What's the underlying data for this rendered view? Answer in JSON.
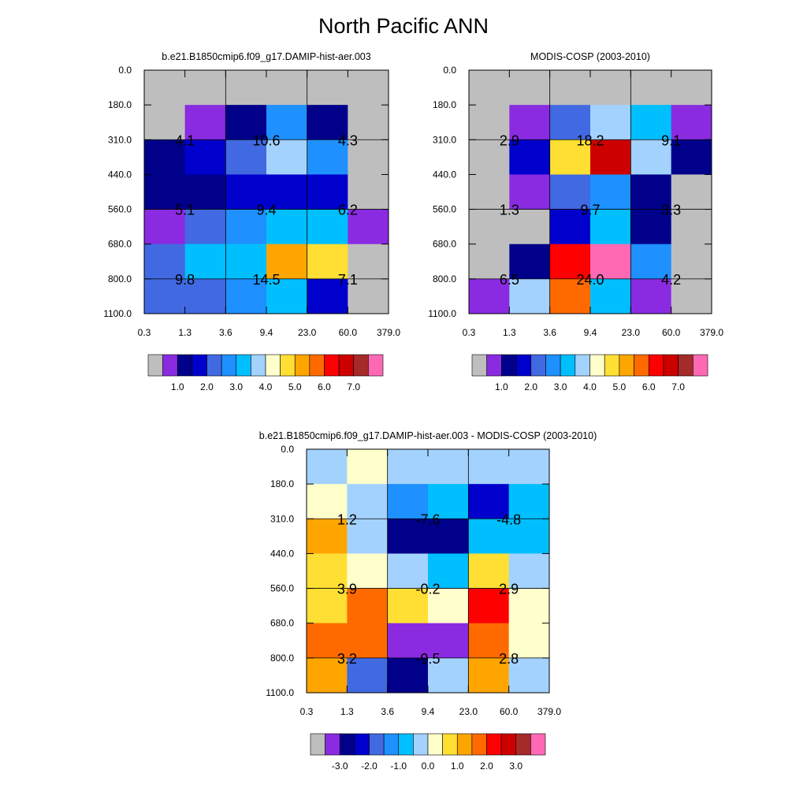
{
  "title": "North Pacific ANN",
  "chart_data": [
    {
      "type": "heatmap",
      "title": "b.e21.B1850cmip6.f09_g17.DAMIP-hist-aer.003",
      "x_ticks": [
        "0.3",
        "1.3",
        "3.6",
        "9.4",
        "23.0",
        "60.0",
        "379.0"
      ],
      "y_ticks": [
        "0.0",
        "180.0",
        "310.0",
        "440.0",
        "560.0",
        "680.0",
        "800.0",
        "1100.0"
      ],
      "cell_colors": [
        [
          "#bebebe",
          "#bebebe",
          "#bebebe",
          "#bebebe",
          "#bebebe",
          "#bebebe"
        ],
        [
          "#bebebe",
          "#8a2be2",
          "#00008b",
          "#1e90ff",
          "#00008b",
          "#bebebe"
        ],
        [
          "#00008b",
          "#0000cd",
          "#4169e1",
          "#a3d2ff",
          "#1e90ff",
          "#bebebe"
        ],
        [
          "#00008b",
          "#00008b",
          "#0000cd",
          "#0000cd",
          "#0000cd",
          "#bebebe"
        ],
        [
          "#8a2be2",
          "#4169e1",
          "#1e90ff",
          "#00bfff",
          "#00bfff",
          "#8a2be2"
        ],
        [
          "#4169e1",
          "#00bfff",
          "#00bfff",
          "#ffa500",
          "#ffdf33",
          "#bebebe"
        ],
        [
          "#4169e1",
          "#4169e1",
          "#1e90ff",
          "#00bfff",
          "#0000cd",
          "#bebebe"
        ]
      ],
      "annotations": [
        {
          "row": 1,
          "col": 0,
          "text": "4.1"
        },
        {
          "row": 1,
          "col": 1,
          "text": "10.6"
        },
        {
          "row": 1,
          "col": 2,
          "text": "4.3"
        },
        {
          "row": 2,
          "col": 0,
          "text": "5.1"
        },
        {
          "row": 2,
          "col": 1,
          "text": "9.4"
        },
        {
          "row": 2,
          "col": 2,
          "text": "6.2"
        },
        {
          "row": 3,
          "col": 0,
          "text": "9.8"
        },
        {
          "row": 3,
          "col": 1,
          "text": "14.5"
        },
        {
          "row": 3,
          "col": 2,
          "text": "7.1"
        }
      ],
      "colorbar": {
        "colors": [
          "#bebebe",
          "#8a2be2",
          "#00008b",
          "#0000cd",
          "#4169e1",
          "#1e90ff",
          "#00bfff",
          "#a3d2ff",
          "#ffffcc",
          "#ffdf33",
          "#ffa500",
          "#ff6a00",
          "#ff0000",
          "#cd0000",
          "#a52a2a",
          "#ff69b4"
        ],
        "labels": [
          {
            "text": "1.0",
            "boundary": 2
          },
          {
            "text": "2.0",
            "boundary": 4
          },
          {
            "text": "3.0",
            "boundary": 6
          },
          {
            "text": "4.0",
            "boundary": 8
          },
          {
            "text": "5.0",
            "boundary": 10
          },
          {
            "text": "6.0",
            "boundary": 12
          },
          {
            "text": "7.0",
            "boundary": 14
          }
        ]
      }
    },
    {
      "type": "heatmap",
      "title": "MODIS-COSP (2003-2010)",
      "x_ticks": [
        "0.3",
        "1.3",
        "3.6",
        "9.4",
        "23.0",
        "60.0",
        "379.0"
      ],
      "y_ticks": [
        "0.0",
        "180.0",
        "310.0",
        "440.0",
        "560.0",
        "680.0",
        "800.0",
        "1100.0"
      ],
      "cell_colors": [
        [
          "#bebebe",
          "#bebebe",
          "#bebebe",
          "#bebebe",
          "#bebebe",
          "#bebebe"
        ],
        [
          "#bebebe",
          "#8a2be2",
          "#4169e1",
          "#a3d2ff",
          "#00bfff",
          "#8a2be2"
        ],
        [
          "#bebebe",
          "#0000cd",
          "#ffdf33",
          "#cd0000",
          "#a3d2ff",
          "#00008b"
        ],
        [
          "#bebebe",
          "#8a2be2",
          "#4169e1",
          "#1e90ff",
          "#00008b",
          "#bebebe"
        ],
        [
          "#bebebe",
          "#bebebe",
          "#0000cd",
          "#00bfff",
          "#00008b",
          "#bebebe"
        ],
        [
          "#bebebe",
          "#00008b",
          "#ff0000",
          "#ff69b4",
          "#1e90ff",
          "#bebebe"
        ],
        [
          "#8a2be2",
          "#a3d2ff",
          "#ff6a00",
          "#00bfff",
          "#8a2be2",
          "#bebebe"
        ]
      ],
      "annotations": [
        {
          "row": 1,
          "col": 0,
          "text": "2.9"
        },
        {
          "row": 1,
          "col": 1,
          "text": "18.2"
        },
        {
          "row": 1,
          "col": 2,
          "text": "9.1"
        },
        {
          "row": 2,
          "col": 0,
          "text": "1.3"
        },
        {
          "row": 2,
          "col": 1,
          "text": "9.7"
        },
        {
          "row": 2,
          "col": 2,
          "text": "3.3"
        },
        {
          "row": 3,
          "col": 0,
          "text": "6.5"
        },
        {
          "row": 3,
          "col": 1,
          "text": "24.0"
        },
        {
          "row": 3,
          "col": 2,
          "text": "4.2"
        }
      ],
      "colorbar": {
        "colors": [
          "#bebebe",
          "#8a2be2",
          "#00008b",
          "#0000cd",
          "#4169e1",
          "#1e90ff",
          "#00bfff",
          "#a3d2ff",
          "#ffffcc",
          "#ffdf33",
          "#ffa500",
          "#ff6a00",
          "#ff0000",
          "#cd0000",
          "#a52a2a",
          "#ff69b4"
        ],
        "labels": [
          {
            "text": "1.0",
            "boundary": 2
          },
          {
            "text": "2.0",
            "boundary": 4
          },
          {
            "text": "3.0",
            "boundary": 6
          },
          {
            "text": "4.0",
            "boundary": 8
          },
          {
            "text": "5.0",
            "boundary": 10
          },
          {
            "text": "6.0",
            "boundary": 12
          },
          {
            "text": "7.0",
            "boundary": 14
          }
        ]
      }
    },
    {
      "type": "heatmap",
      "title": "b.e21.B1850cmip6.f09_g17.DAMIP-hist-aer.003 - MODIS-COSP (2003-2010)",
      "x_ticks": [
        "0.3",
        "1.3",
        "3.6",
        "9.4",
        "23.0",
        "60.0",
        "379.0"
      ],
      "y_ticks": [
        "0.0",
        "180.0",
        "310.0",
        "440.0",
        "560.0",
        "680.0",
        "800.0",
        "1100.0"
      ],
      "cell_colors": [
        [
          "#a3d2ff",
          "#ffffcc",
          "#a3d2ff",
          "#a3d2ff",
          "#a3d2ff",
          "#a3d2ff"
        ],
        [
          "#ffffcc",
          "#a3d2ff",
          "#1e90ff",
          "#00bfff",
          "#0000cd",
          "#00bfff"
        ],
        [
          "#ffa500",
          "#a3d2ff",
          "#00008b",
          "#00008b",
          "#00bfff",
          "#00bfff"
        ],
        [
          "#ffdf33",
          "#ffffcc",
          "#a3d2ff",
          "#00bfff",
          "#ffdf33",
          "#a3d2ff"
        ],
        [
          "#ffdf33",
          "#ff6a00",
          "#ffdf33",
          "#ffffcc",
          "#ff0000",
          "#ffffcc"
        ],
        [
          "#ff6a00",
          "#ff6a00",
          "#8a2be2",
          "#8a2be2",
          "#ff6a00",
          "#ffffcc"
        ],
        [
          "#ffa500",
          "#4169e1",
          "#00008b",
          "#a3d2ff",
          "#ffa500",
          "#a3d2ff"
        ]
      ],
      "annotations": [
        {
          "row": 1,
          "col": 0,
          "text": "1.2"
        },
        {
          "row": 1,
          "col": 1,
          "text": "-7.6"
        },
        {
          "row": 1,
          "col": 2,
          "text": "-4.8"
        },
        {
          "row": 2,
          "col": 0,
          "text": "3.9"
        },
        {
          "row": 2,
          "col": 1,
          "text": "-0.2"
        },
        {
          "row": 2,
          "col": 2,
          "text": "2.9"
        },
        {
          "row": 3,
          "col": 0,
          "text": "3.2"
        },
        {
          "row": 3,
          "col": 1,
          "text": "-9.5"
        },
        {
          "row": 3,
          "col": 2,
          "text": "2.8"
        }
      ],
      "colorbar": {
        "colors": [
          "#bebebe",
          "#8a2be2",
          "#00008b",
          "#0000cd",
          "#4169e1",
          "#1e90ff",
          "#00bfff",
          "#a3d2ff",
          "#ffffcc",
          "#ffdf33",
          "#ffa500",
          "#ff6a00",
          "#ff0000",
          "#cd0000",
          "#a52a2a",
          "#ff69b4"
        ],
        "labels": [
          {
            "text": "-3.0",
            "boundary": 2
          },
          {
            "text": "-2.0",
            "boundary": 4
          },
          {
            "text": "-1.0",
            "boundary": 6
          },
          {
            "text": "0.0",
            "boundary": 8
          },
          {
            "text": "1.0",
            "boundary": 10
          },
          {
            "text": "2.0",
            "boundary": 12
          },
          {
            "text": "3.0",
            "boundary": 14
          }
        ]
      }
    }
  ]
}
